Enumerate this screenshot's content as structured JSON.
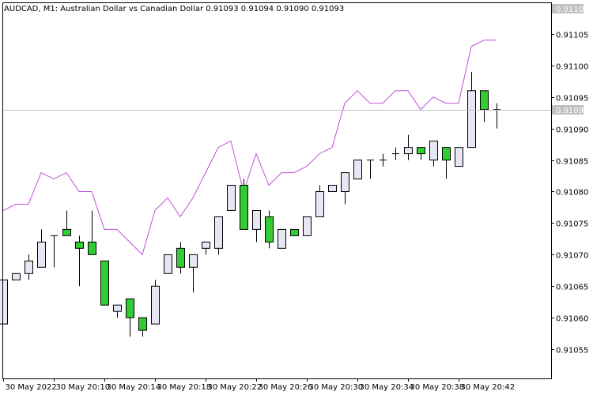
{
  "header": {
    "symbol_line": "AUDCAD, M1:  Australian Dollar vs Canadian Dollar  0.91093 0.91094 0.91090 0.91093"
  },
  "price_labels": {
    "top_badge": "0.91109",
    "current_badge": "0.91093"
  },
  "colors": {
    "background": "#ffffff",
    "frame": "#000000",
    "bull_fill": "#e6e6f4",
    "bear_fill": "#32cd32",
    "candle_outline": "#000000",
    "indicator_line": "#c050d8",
    "current_price_line": "#c0c0c0",
    "badge_bg": "#c0c0c0",
    "badge_text": "#ffffff"
  },
  "chart_data": {
    "type": "candlestick",
    "title": "AUDCAD, M1:  Australian Dollar vs Canadian Dollar",
    "ylim": [
      0.91051,
      0.91109
    ],
    "y_ticks": [
      "0.91105",
      "0.91100",
      "0.91095",
      "0.91090",
      "0.91085",
      "0.91080",
      "0.91075",
      "0.91070",
      "0.91065",
      "0.91060",
      "0.91055"
    ],
    "x_tick_labels": [
      "30 May 2022",
      "30 May 20:10",
      "30 May 20:14",
      "30 May 20:18",
      "30 May 20:22",
      "30 May 20:26",
      "30 May 20:30",
      "30 May 20:34",
      "30 May 20:38",
      "30 May 20:42"
    ],
    "current_price": 0.91093,
    "candles": [
      {
        "o": 0.91059,
        "h": 0.91066,
        "l": 0.91059,
        "c": 0.91066
      },
      {
        "o": 0.91066,
        "h": 0.91067,
        "l": 0.91066,
        "c": 0.91067
      },
      {
        "o": 0.91067,
        "h": 0.9107,
        "l": 0.91066,
        "c": 0.91069
      },
      {
        "o": 0.91068,
        "h": 0.91074,
        "l": 0.91068,
        "c": 0.91072
      },
      {
        "o": 0.91073,
        "h": 0.91073,
        "l": 0.91068,
        "c": 0.91073
      },
      {
        "o": 0.91074,
        "h": 0.91077,
        "l": 0.91073,
        "c": 0.91073
      },
      {
        "o": 0.91072,
        "h": 0.91073,
        "l": 0.91065,
        "c": 0.91071
      },
      {
        "o": 0.91072,
        "h": 0.91077,
        "l": 0.9107,
        "c": 0.9107
      },
      {
        "o": 0.91069,
        "h": 0.91069,
        "l": 0.91062,
        "c": 0.91062
      },
      {
        "o": 0.91061,
        "h": 0.91062,
        "l": 0.9106,
        "c": 0.91062
      },
      {
        "o": 0.91063,
        "h": 0.91063,
        "l": 0.91057,
        "c": 0.9106
      },
      {
        "o": 0.9106,
        "h": 0.9106,
        "l": 0.91057,
        "c": 0.91058
      },
      {
        "o": 0.91059,
        "h": 0.91066,
        "l": 0.91059,
        "c": 0.91065
      },
      {
        "o": 0.91067,
        "h": 0.9107,
        "l": 0.91067,
        "c": 0.9107
      },
      {
        "o": 0.91071,
        "h": 0.91072,
        "l": 0.91067,
        "c": 0.91068
      },
      {
        "o": 0.91068,
        "h": 0.9107,
        "l": 0.91064,
        "c": 0.9107
      },
      {
        "o": 0.91071,
        "h": 0.91072,
        "l": 0.9107,
        "c": 0.91072
      },
      {
        "o": 0.91071,
        "h": 0.91076,
        "l": 0.9107,
        "c": 0.91076
      },
      {
        "o": 0.91077,
        "h": 0.91081,
        "l": 0.91077,
        "c": 0.91081
      },
      {
        "o": 0.91081,
        "h": 0.91082,
        "l": 0.91074,
        "c": 0.91074
      },
      {
        "o": 0.91074,
        "h": 0.91077,
        "l": 0.91072,
        "c": 0.91077
      },
      {
        "o": 0.91076,
        "h": 0.91077,
        "l": 0.91071,
        "c": 0.91072
      },
      {
        "o": 0.91071,
        "h": 0.91074,
        "l": 0.91071,
        "c": 0.91074
      },
      {
        "o": 0.91074,
        "h": 0.91074,
        "l": 0.91073,
        "c": 0.91073
      },
      {
        "o": 0.91073,
        "h": 0.91076,
        "l": 0.91073,
        "c": 0.91076
      },
      {
        "o": 0.91076,
        "h": 0.91081,
        "l": 0.91076,
        "c": 0.9108
      },
      {
        "o": 0.9108,
        "h": 0.91081,
        "l": 0.9108,
        "c": 0.91081
      },
      {
        "o": 0.9108,
        "h": 0.91083,
        "l": 0.91078,
        "c": 0.91083
      },
      {
        "o": 0.91082,
        "h": 0.91085,
        "l": 0.91082,
        "c": 0.91085
      },
      {
        "o": 0.91085,
        "h": 0.91085,
        "l": 0.91082,
        "c": 0.91085
      },
      {
        "o": 0.91085,
        "h": 0.91086,
        "l": 0.91084,
        "c": 0.91085
      },
      {
        "o": 0.91086,
        "h": 0.91087,
        "l": 0.91085,
        "c": 0.91086
      },
      {
        "o": 0.91086,
        "h": 0.91089,
        "l": 0.91085,
        "c": 0.91087
      },
      {
        "o": 0.91087,
        "h": 0.91087,
        "l": 0.91085,
        "c": 0.91086
      },
      {
        "o": 0.91085,
        "h": 0.91088,
        "l": 0.91084,
        "c": 0.91088
      },
      {
        "o": 0.91087,
        "h": 0.91087,
        "l": 0.91082,
        "c": 0.91085
      },
      {
        "o": 0.91084,
        "h": 0.91087,
        "l": 0.91084,
        "c": 0.91087
      },
      {
        "o": 0.91087,
        "h": 0.91099,
        "l": 0.91087,
        "c": 0.91096
      },
      {
        "o": 0.91096,
        "h": 0.91096,
        "l": 0.91091,
        "c": 0.91093
      },
      {
        "o": 0.91093,
        "h": 0.91094,
        "l": 0.9109,
        "c": 0.91093
      }
    ],
    "indicator_line": [
      0.91077,
      0.91078,
      0.91078,
      0.91083,
      0.91082,
      0.91083,
      0.9108,
      0.9108,
      0.91074,
      0.91074,
      0.91072,
      0.9107,
      0.91077,
      0.91079,
      0.91076,
      0.91079,
      0.91083,
      0.91087,
      0.91088,
      0.9108,
      0.91086,
      0.91081,
      0.91083,
      0.91083,
      0.91084,
      0.91086,
      0.91087,
      0.91094,
      0.91096,
      0.91094,
      0.91094,
      0.91096,
      0.91096,
      0.91093,
      0.91095,
      0.91094,
      0.91094,
      0.91103,
      0.91104,
      0.91104
    ]
  }
}
